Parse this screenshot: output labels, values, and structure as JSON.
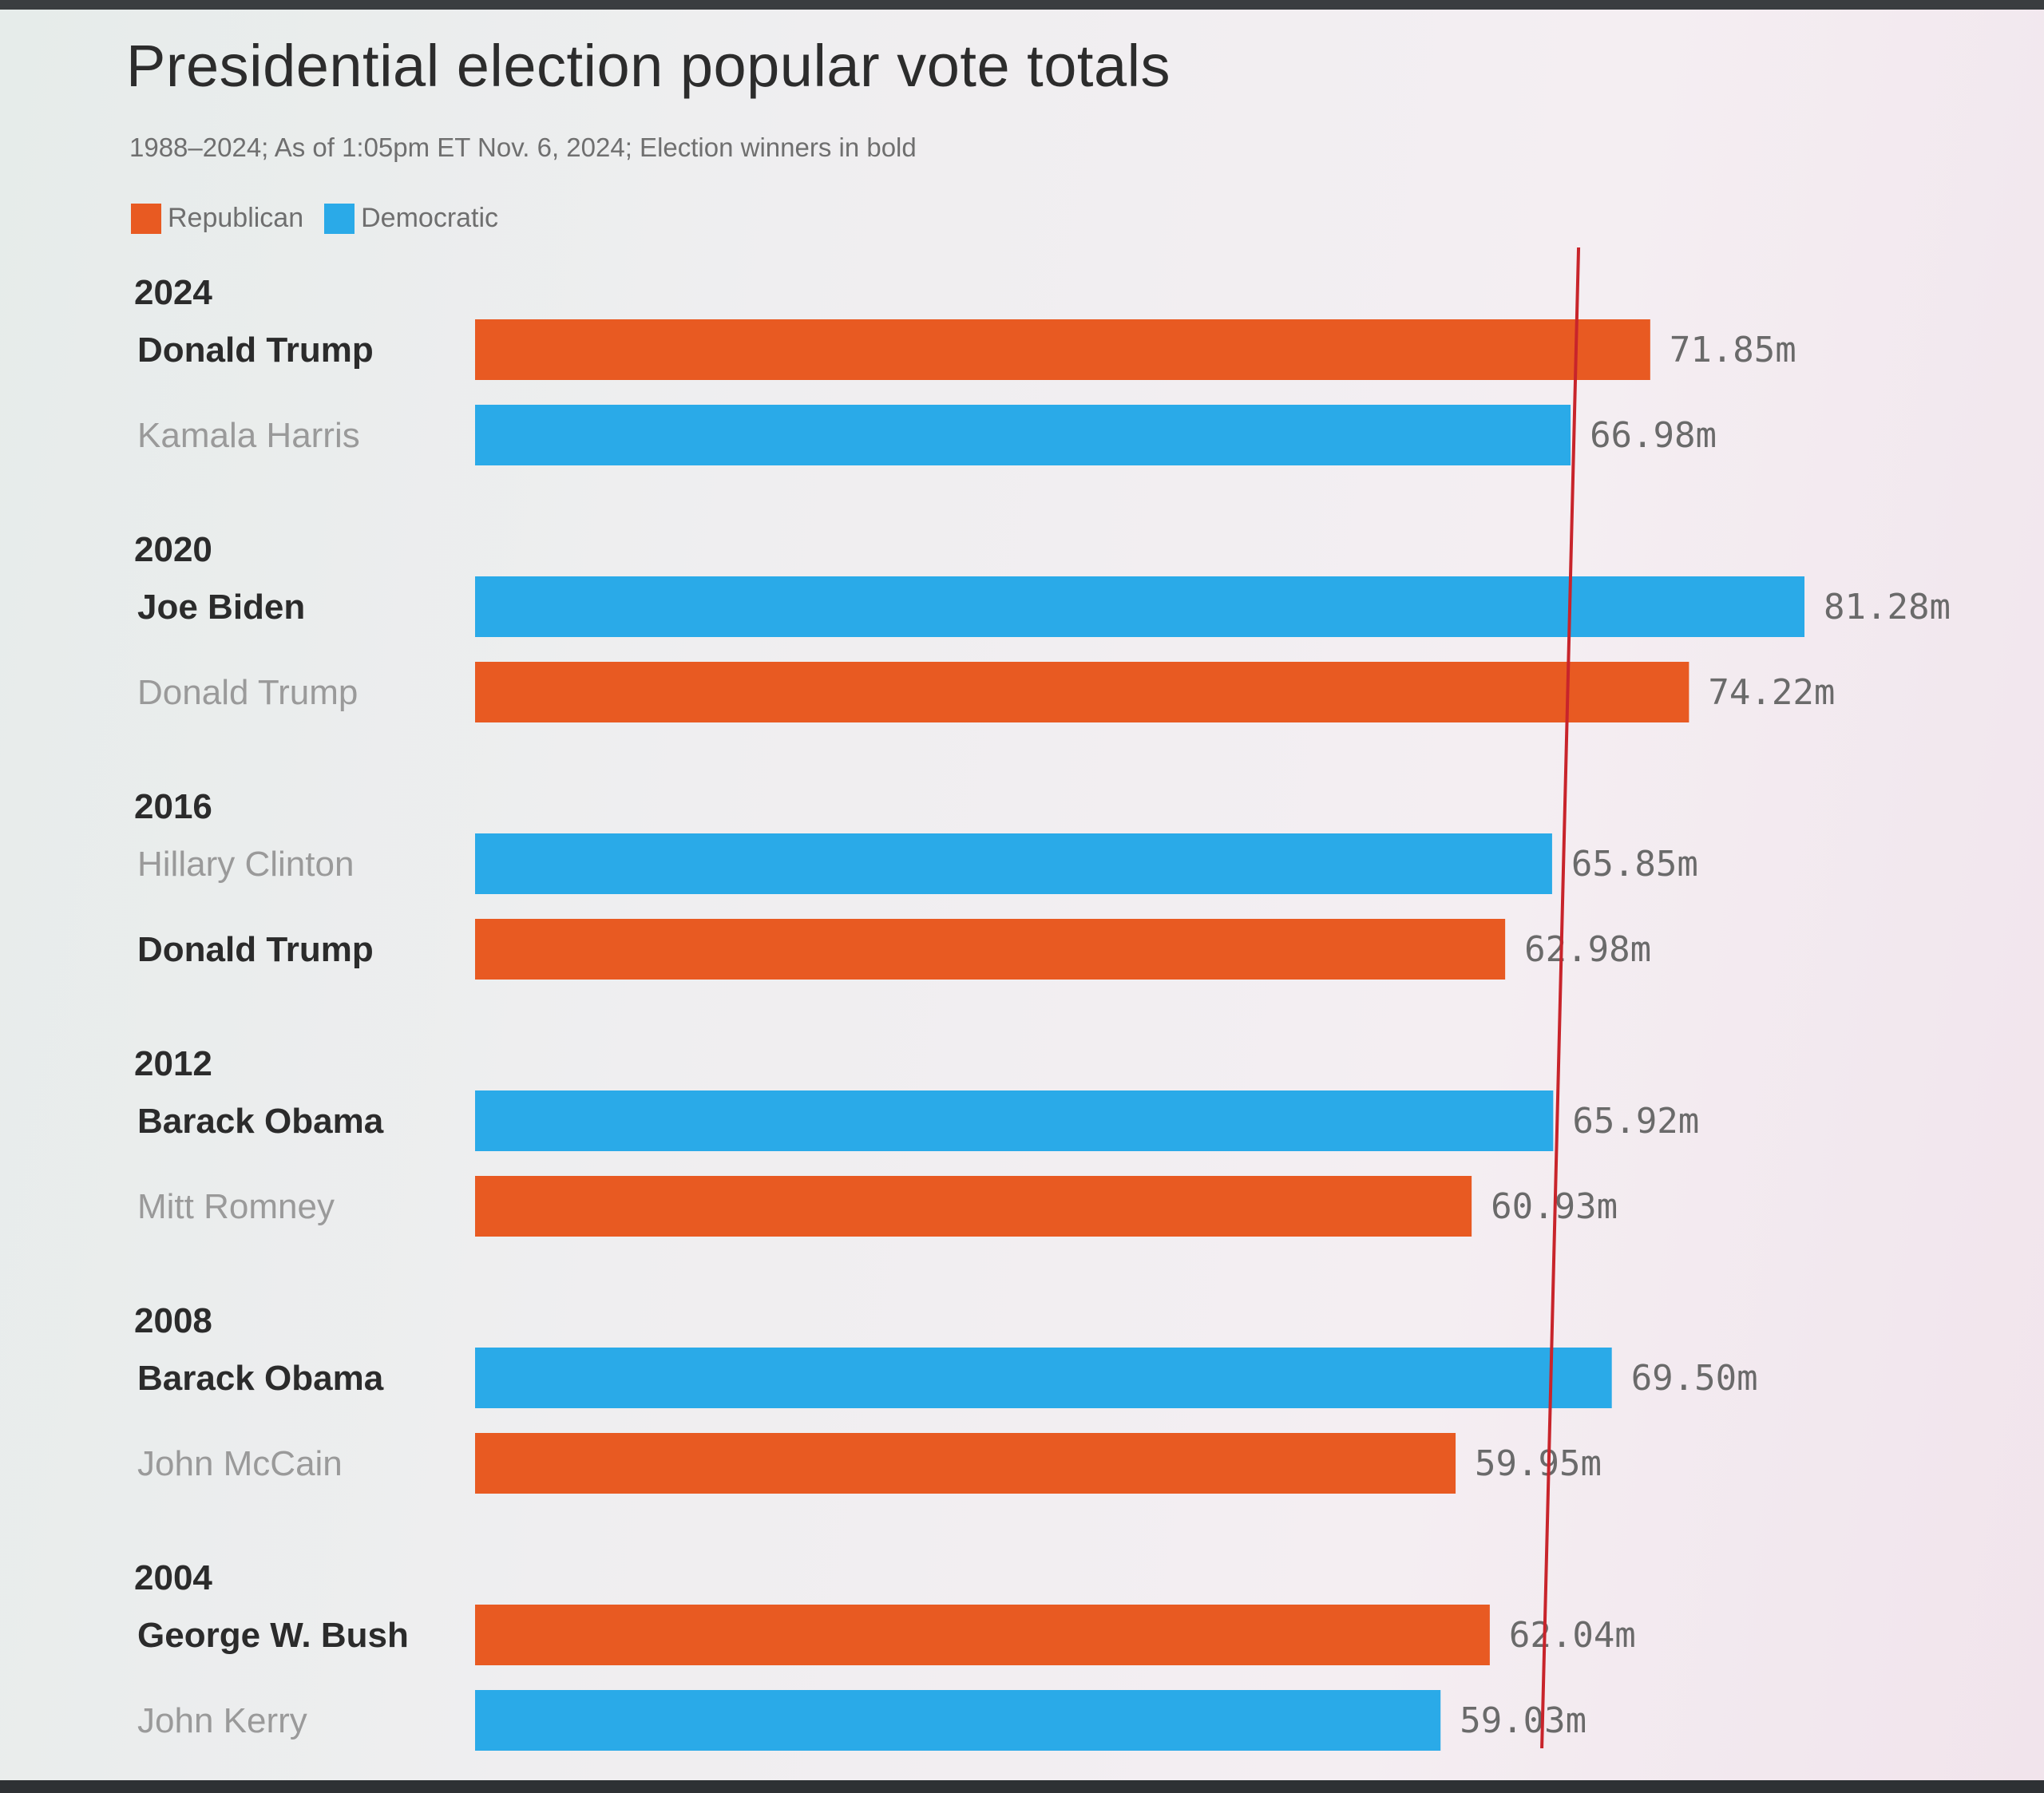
{
  "title": "Presidential election popular vote totals",
  "subtitle": "1988–2024; As of 1:05pm ET Nov. 6, 2024; Election winners in bold",
  "legend": [
    {
      "label": "Republican",
      "color": "#e85a22"
    },
    {
      "label": "Democratic",
      "color": "#2aaae8"
    }
  ],
  "colors": {
    "Republican": "#e85a22",
    "Democratic": "#2aaae8",
    "winner_text": "#2b2b2b",
    "loser_text": "#9a9a9a",
    "value_text": "#6a6a6a",
    "reference_line": "#c8242b"
  },
  "chart_data": {
    "type": "bar",
    "orientation": "horizontal",
    "unit": "m",
    "xlim": [
      0,
      81.28
    ],
    "reference_line_value": 66.98,
    "groups": [
      {
        "year": "2024",
        "entries": [
          {
            "name": "Donald Trump",
            "party": "Republican",
            "value": 71.85,
            "label": "71.85m",
            "winner": true
          },
          {
            "name": "Kamala Harris",
            "party": "Democratic",
            "value": 66.98,
            "label": "66.98m",
            "winner": false
          }
        ]
      },
      {
        "year": "2020",
        "entries": [
          {
            "name": "Joe Biden",
            "party": "Democratic",
            "value": 81.28,
            "label": "81.28m",
            "winner": true
          },
          {
            "name": "Donald Trump",
            "party": "Republican",
            "value": 74.22,
            "label": "74.22m",
            "winner": false
          }
        ]
      },
      {
        "year": "2016",
        "entries": [
          {
            "name": "Hillary Clinton",
            "party": "Democratic",
            "value": 65.85,
            "label": "65.85m",
            "winner": false
          },
          {
            "name": "Donald Trump",
            "party": "Republican",
            "value": 62.98,
            "label": "62.98m",
            "winner": true
          }
        ]
      },
      {
        "year": "2012",
        "entries": [
          {
            "name": "Barack Obama",
            "party": "Democratic",
            "value": 65.92,
            "label": "65.92m",
            "winner": true
          },
          {
            "name": "Mitt Romney",
            "party": "Republican",
            "value": 60.93,
            "label": "60.93m",
            "winner": false
          }
        ]
      },
      {
        "year": "2008",
        "entries": [
          {
            "name": "Barack Obama",
            "party": "Democratic",
            "value": 69.5,
            "label": "69.50m",
            "winner": true
          },
          {
            "name": "John McCain",
            "party": "Republican",
            "value": 59.95,
            "label": "59.95m",
            "winner": false
          }
        ]
      },
      {
        "year": "2004",
        "entries": [
          {
            "name": "George W. Bush",
            "party": "Republican",
            "value": 62.04,
            "label": "62.04m",
            "winner": true
          },
          {
            "name": "John Kerry",
            "party": "Democratic",
            "value": 59.03,
            "label": "59.03m",
            "winner": false
          }
        ]
      }
    ]
  }
}
